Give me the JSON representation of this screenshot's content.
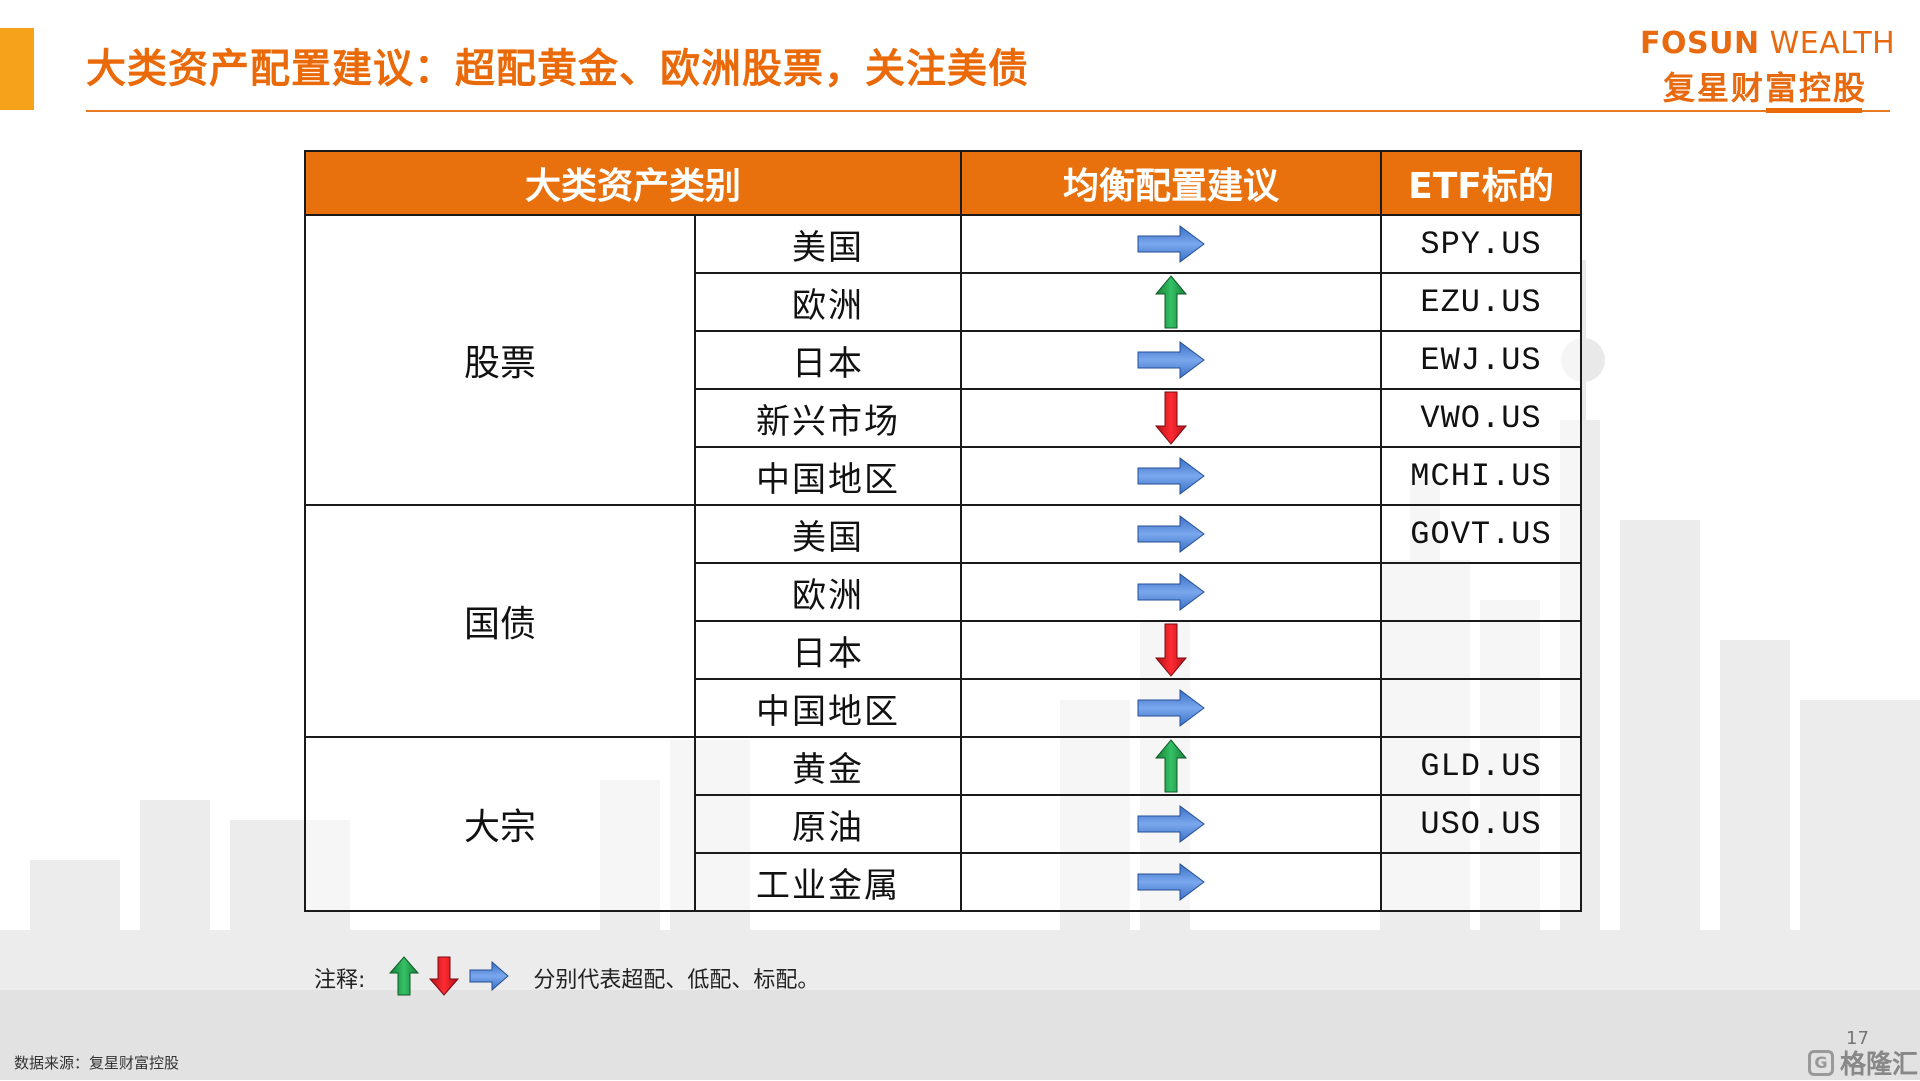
{
  "colors": {
    "accent": "#ea6a0a",
    "header_bg": "#e8710e",
    "up": "#1f9a4a",
    "down": "#e51b24",
    "neutral": "#4f86d8"
  },
  "header": {
    "title": "大类资产配置建议：超配黄金、欧洲股票，关注美债",
    "logo_en_bold": "FOSUN",
    "logo_en_light": "WEALTH",
    "logo_cn": "复星财富控股"
  },
  "table": {
    "columns": [
      "大类资产类别",
      "均衡配置建议",
      "ETF标的"
    ],
    "groups": [
      {
        "category": "股票",
        "rows": [
          {
            "region": "美国",
            "signal": "neutral",
            "etf": "SPY.US"
          },
          {
            "region": "欧洲",
            "signal": "up",
            "etf": "EZU.US"
          },
          {
            "region": "日本",
            "signal": "neutral",
            "etf": "EWJ.US"
          },
          {
            "region": "新兴市场",
            "signal": "down",
            "etf": "VWO.US"
          },
          {
            "region": "中国地区",
            "signal": "neutral",
            "etf": "MCHI.US"
          }
        ]
      },
      {
        "category": "国债",
        "rows": [
          {
            "region": "美国",
            "signal": "neutral",
            "etf": "GOVT.US"
          },
          {
            "region": "欧洲",
            "signal": "neutral",
            "etf": ""
          },
          {
            "region": "日本",
            "signal": "down",
            "etf": ""
          },
          {
            "region": "中国地区",
            "signal": "neutral",
            "etf": ""
          }
        ]
      },
      {
        "category": "大宗",
        "rows": [
          {
            "region": "黄金",
            "signal": "up",
            "etf": "GLD.US"
          },
          {
            "region": "原油",
            "signal": "neutral",
            "etf": "USO.US"
          },
          {
            "region": "工业金属",
            "signal": "neutral",
            "etf": ""
          }
        ]
      }
    ]
  },
  "legend": {
    "label": "注释:",
    "icons": [
      "arrow-up-icon",
      "arrow-down-icon",
      "arrow-right-icon"
    ],
    "text": "分别代表超配、低配、标配。"
  },
  "footer": {
    "source": "数据来源：复星财富控股",
    "page_number": "17",
    "watermark": "格隆汇"
  }
}
